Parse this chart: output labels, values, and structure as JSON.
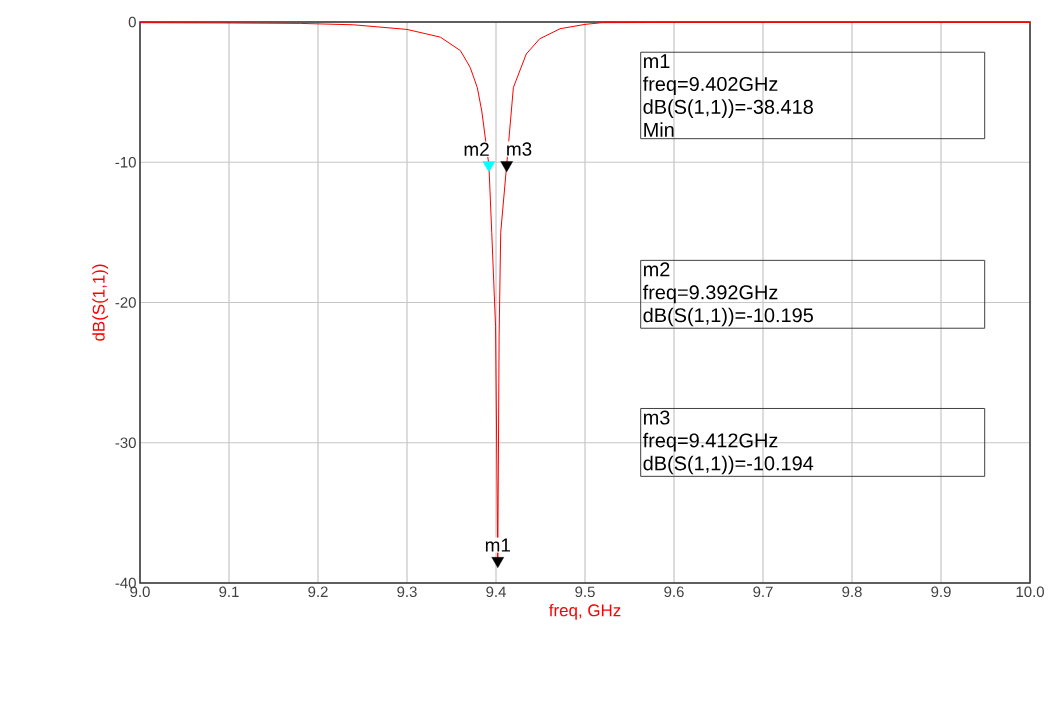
{
  "chart_data": {
    "type": "line",
    "xlabel": "freq, GHz",
    "ylabel": "dB(S(1,1))",
    "series": [
      {
        "color": "#ff0000",
        "x": [
          9.0,
          9.1,
          9.18,
          9.24,
          9.3,
          9.3375,
          9.36,
          9.371,
          9.379,
          9.384,
          9.392,
          9.3952,
          9.3995,
          9.402,
          9.4035,
          9.4053,
          9.412,
          9.4195,
          9.434,
          9.449,
          9.472,
          9.5,
          9.519,
          9.6,
          9.8,
          10.0
        ],
        "values": [
          -0.05,
          -0.07,
          -0.1,
          -0.2,
          -0.53,
          -1.08,
          -2.04,
          -3.24,
          -4.68,
          -6.35,
          -10.195,
          -15.0,
          -21.7,
          -38.418,
          -22.4,
          -15.0,
          -10.194,
          -4.68,
          -2.28,
          -1.2,
          -0.48,
          -0.17,
          -0.05,
          -0.03,
          -0.03,
          -0.03
        ]
      },
      {
        "type": "scatter",
        "marker": "triangle",
        "x": [
          9.402,
          9.392,
          9.412
        ],
        "values": [
          -38.418,
          -10.195,
          -10.194
        ],
        "colors": [
          "#000000",
          "#00ffff",
          "#000000"
        ]
      }
    ],
    "xlim": [
      9.0,
      10.0
    ],
    "ylim": [
      -40,
      0
    ],
    "xticks": [
      {
        "value": 9.0,
        "label": "9.0"
      },
      {
        "value": 9.1,
        "label": "9.1"
      },
      {
        "value": 9.2,
        "label": "9.2"
      },
      {
        "value": 9.3,
        "label": "9.3"
      },
      {
        "value": 9.4,
        "label": "9.4"
      },
      {
        "value": 9.5,
        "label": "9.5"
      },
      {
        "value": 9.6,
        "label": "9.6"
      },
      {
        "value": 9.7,
        "label": "9.7"
      },
      {
        "value": 9.8,
        "label": "9.8"
      },
      {
        "value": 9.9,
        "label": "9.9"
      },
      {
        "value": 10.0,
        "label": "10.0"
      }
    ],
    "yticks": [
      0,
      -10,
      -20,
      -30,
      -40
    ],
    "grid": true,
    "annotations": [
      {
        "text": "m1",
        "x": 9.402,
        "y": -38.418
      },
      {
        "text": "m2",
        "x": 9.392,
        "y": -10.195
      },
      {
        "text": "m3",
        "x": 9.412,
        "y": -10.194
      },
      "m1",
      "freq=9.402GHz",
      "dB(S(1,1))=-38.418",
      "Min",
      "m2",
      "freq=9.392GHz",
      "dB(S(1,1))=-10.195",
      "m3",
      "freq=9.412GHz",
      "dB(S(1,1))=-10.194"
    ]
  }
}
